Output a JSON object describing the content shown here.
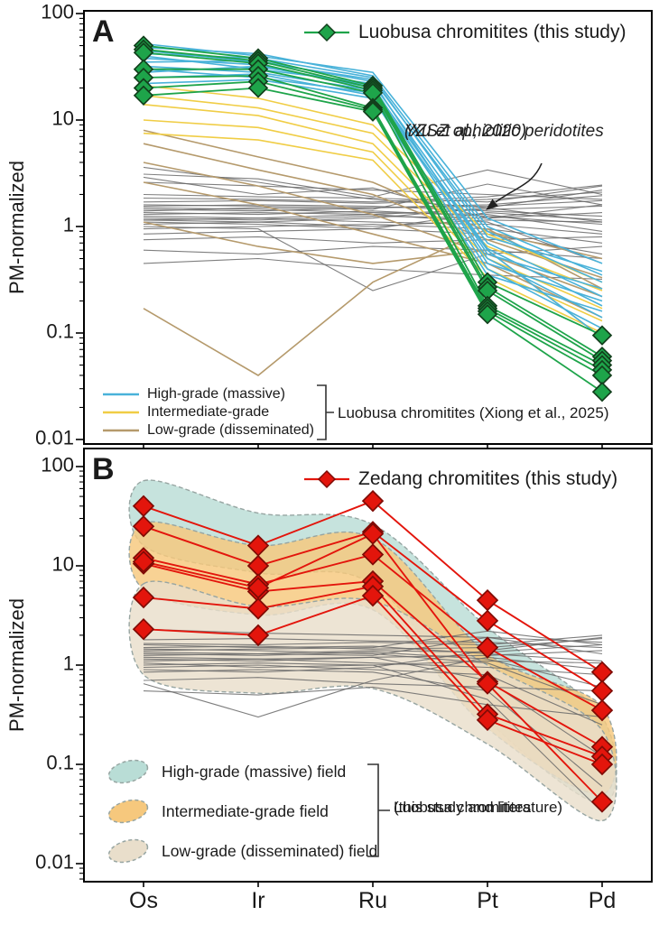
{
  "colors": {
    "green": "#1ea44a",
    "green_dark": "#123f1c",
    "red": "#e3150c",
    "red_dark": "#7f0b05",
    "blue_line": "#49b2d9",
    "yellow_line": "#f0cd45",
    "tan_line": "#b59a6c",
    "grey_line": "#686868",
    "field_teal": "#b9ddd6",
    "field_orange": "#f6c87d",
    "field_tan": "#e9decb",
    "field_edge": "#97a5a2",
    "text": "#1a1a1a",
    "axis": "#000000"
  },
  "chart_data": [
    {
      "type": "line",
      "panel_label": "A",
      "ylabel": "PM-normalized",
      "log_scale_y": true,
      "ylim": [
        0.01,
        100
      ],
      "yticks": [
        "100",
        "10",
        "1",
        "0.1",
        "0.01"
      ],
      "categories": [
        "Os",
        "Ir",
        "Ru",
        "Pt",
        "Pd"
      ],
      "legend": "Luobusa chromitites (this study)",
      "annotation": {
        "line1": "YZSZ ophiolitic peridotites",
        "line2": "(Xu et al., 2020)"
      },
      "groups_bracket_label": "Luobusa chromitites (Xiong et al., 2025)",
      "groups": [
        {
          "name": "YZSZ ophiolitic peridotites (Xu et al., 2020)",
          "color_key": "grey_line",
          "width": 1.1,
          "opacity": 0.85,
          "lines": [
            [
              1.05,
              1.1,
              1.0,
              1.15,
              1.1
            ],
            [
              1.2,
              1.15,
              1.25,
              1.2,
              1.35
            ],
            [
              1.3,
              1.35,
              1.3,
              1.45,
              1.55
            ],
            [
              1.45,
              1.4,
              1.5,
              1.55,
              1.75
            ],
            [
              1.6,
              1.55,
              1.5,
              1.6,
              1.95
            ],
            [
              1.7,
              1.75,
              1.65,
              1.8,
              2.1
            ],
            [
              1.85,
              1.8,
              1.7,
              1.9,
              2.45
            ],
            [
              1.15,
              1.2,
              1.1,
              1.05,
              0.85
            ],
            [
              1.35,
              1.3,
              1.4,
              1.25,
              1.05
            ],
            [
              1.5,
              1.45,
              1.35,
              1.3,
              0.9
            ],
            [
              0.95,
              1.0,
              1.05,
              0.95,
              0.7
            ],
            [
              1.1,
              1.05,
              0.95,
              0.85,
              0.55
            ],
            [
              1.25,
              1.2,
              1.3,
              1.1,
              0.45
            ],
            [
              2.6,
              2.4,
              2.2,
              2.0,
              1.8
            ],
            [
              3.1,
              2.8,
              1.9,
              3.4,
              2.0
            ],
            [
              0.75,
              0.8,
              0.7,
              0.75,
              0.8
            ],
            [
              0.6,
              0.55,
              0.65,
              0.6,
              0.5
            ],
            [
              0.45,
              0.5,
              0.4,
              0.35,
              0.32
            ],
            [
              1.0,
              0.95,
              0.25,
              0.55,
              0.65
            ],
            [
              1.4,
              1.5,
              1.45,
              2.5,
              1.6
            ],
            [
              2.0,
              1.9,
              1.85,
              1.7,
              2.4
            ],
            [
              0.85,
              0.9,
              0.95,
              1.35,
              1.15
            ],
            [
              1.55,
              1.6,
              1.55,
              1.4,
              1.25
            ],
            [
              1.15,
              1.1,
              1.2,
              1.5,
              2.2
            ],
            [
              3.6,
              2.6,
              1.8,
              1.5,
              1.1
            ],
            [
              2.9,
              2.0,
              2.3,
              1.2,
              1.6
            ]
          ]
        },
        {
          "name": "Low-grade (disseminated)",
          "color_key": "tan_line",
          "width": 1.6,
          "lines": [
            [
              8,
              4.5,
              2.6,
              0.9,
              0.5
            ],
            [
              6,
              3.4,
              2.0,
              0.75,
              0.33
            ],
            [
              4,
              2.4,
              1.3,
              0.55,
              0.22
            ],
            [
              2.6,
              1.6,
              0.85,
              0.45,
              0.14
            ],
            [
              1.1,
              0.65,
              0.45,
              0.6,
              0.09
            ],
            [
              0.17,
              0.04,
              0.3,
              0.95,
              0.26
            ]
          ]
        },
        {
          "name": "Intermediate-grade",
          "color_key": "yellow_line",
          "width": 1.6,
          "lines": [
            [
              21,
              16,
              9,
              0.85,
              0.3
            ],
            [
              17,
              13,
              7.5,
              0.65,
              0.25
            ],
            [
              14,
              11,
              6,
              0.5,
              0.17
            ],
            [
              10,
              8.5,
              5,
              0.4,
              0.13
            ],
            [
              7.5,
              6.5,
              4.2,
              0.33,
              0.1
            ]
          ]
        },
        {
          "name": "High-grade (massive)",
          "color_key": "blue_line",
          "width": 1.6,
          "lines": [
            [
              52,
              40,
              28,
              1.2,
              0.45
            ],
            [
              48,
              42,
              26,
              1.0,
              0.35
            ],
            [
              45,
              35,
              24,
              0.9,
              0.3
            ],
            [
              42,
              38,
              25,
              0.8,
              0.38
            ],
            [
              40,
              30,
              22,
              0.7,
              0.22
            ],
            [
              38,
              33,
              20,
              0.62,
              0.18
            ],
            [
              35,
              36,
              23,
              0.55,
              0.26
            ],
            [
              32,
              28,
              19,
              0.5,
              0.14
            ],
            [
              28,
              32,
              21,
              0.45,
              0.2
            ],
            [
              25,
              27,
              17,
              0.4,
              0.11
            ],
            [
              22,
              24,
              16,
              0.35,
              0.16
            ],
            [
              30,
              25,
              18,
              0.6,
              0.09
            ]
          ]
        },
        {
          "name": "Luobusa chromitites (this study)",
          "color_key": "green",
          "edge_key": "green_dark",
          "width": 1.8,
          "marker": "diamond",
          "marker_size": 10,
          "lines": [
            [
              50,
              38,
              21,
              0.3,
              0.095
            ],
            [
              46,
              36,
              20,
              0.27,
              0.06
            ],
            [
              43,
              34,
              19,
              0.25,
              0.055
            ],
            [
              30,
              30,
              18,
              0.18,
              0.05
            ],
            [
              25,
              26,
              13,
              0.17,
              0.045
            ],
            [
              20,
              23,
              12.5,
              0.16,
              0.04
            ],
            [
              17,
              20,
              12,
              0.15,
              0.028
            ]
          ]
        }
      ]
    },
    {
      "type": "line",
      "panel_label": "B",
      "ylabel": "PM-normalized",
      "log_scale_y": true,
      "ylim": [
        0.01,
        100
      ],
      "yticks": [
        "100",
        "10",
        "1",
        "0.1",
        "0.01"
      ],
      "categories": [
        "Os",
        "Ir",
        "Ru",
        "Pt",
        "Pd"
      ],
      "legend": "Zedang chromitites (this study)",
      "fields_bracket_line1": "Luobusa chromitites",
      "fields_bracket_line2": "(this study and literature)",
      "fields": [
        {
          "name": "High-grade (massive) field",
          "fill_key": "field_teal",
          "upper": [
            72,
            34,
            26,
            2.4,
            0.3
          ],
          "lower": [
            16,
            8.5,
            6.5,
            0.28,
            0.04
          ]
        },
        {
          "name": "Intermediate-grade field",
          "fill_key": "field_orange",
          "upper": [
            27,
            16,
            19,
            1.3,
            0.38
          ],
          "lower": [
            5.8,
            3.2,
            3.6,
            0.23,
            0.05
          ]
        },
        {
          "name": "Low-grade (disseminated) field",
          "fill_key": "field_tan",
          "upper": [
            6.6,
            3.9,
            4.4,
            1.0,
            0.22
          ],
          "lower": [
            0.8,
            0.52,
            0.58,
            0.16,
            0.027
          ]
        }
      ],
      "groups": [
        {
          "name": "YZSZ ophiolitic peridotites",
          "color_key": "grey_line",
          "width": 1.1,
          "opacity": 0.85,
          "lines": [
            [
              1.0,
              1.05,
              1.0,
              1.1,
              1.05
            ],
            [
              1.2,
              1.15,
              1.2,
              1.25,
              1.4
            ],
            [
              1.35,
              1.3,
              1.4,
              1.35,
              1.6
            ],
            [
              1.5,
              1.55,
              1.45,
              1.5,
              1.85
            ],
            [
              1.65,
              1.6,
              1.7,
              1.6,
              2.0
            ],
            [
              1.8,
              1.85,
              1.75,
              1.7,
              1.5
            ],
            [
              1.1,
              1.15,
              1.05,
              0.95,
              0.8
            ],
            [
              1.3,
              1.25,
              1.35,
              1.15,
              0.6
            ],
            [
              1.45,
              1.4,
              1.3,
              1.05,
              0.4
            ],
            [
              0.95,
              1.0,
              0.9,
              0.8,
              0.25
            ],
            [
              1.15,
              1.1,
              1.2,
              0.7,
              0.12
            ],
            [
              0.85,
              0.9,
              0.85,
              0.55,
              0.06
            ],
            [
              1.05,
              0.95,
              1.0,
              0.45,
              0.033
            ],
            [
              2.3,
              2.1,
              2.0,
              1.9,
              1.7
            ],
            [
              0.7,
              0.75,
              0.65,
              0.6,
              0.55
            ],
            [
              0.55,
              0.5,
              0.6,
              0.4,
              0.3
            ],
            [
              0.65,
              0.3,
              0.7,
              1.2,
              0.9
            ],
            [
              1.25,
              1.3,
              1.25,
              1.9,
              1.3
            ],
            [
              1.6,
              1.5,
              1.55,
              1.3,
              1.1
            ],
            [
              0.9,
              0.85,
              0.95,
              1.4,
              1.9
            ],
            [
              1.4,
              1.45,
              1.5,
              2.2,
              1.6
            ]
          ]
        },
        {
          "name": "Zedang chromitites (this study)",
          "color_key": "red",
          "edge_key": "red_dark",
          "width": 1.9,
          "marker": "diamond",
          "marker_size": 11,
          "lines": [
            [
              40,
              16,
              45,
              4.5,
              0.85
            ],
            [
              25,
              10,
              22,
              2.8,
              0.55
            ],
            [
              12,
              6.5,
              13,
              1.5,
              0.35
            ],
            [
              10.5,
              5.5,
              7,
              0.68,
              0.15
            ],
            [
              4.8,
              3.7,
              6.2,
              0.32,
              0.12
            ],
            [
              2.3,
              2.0,
              5.0,
              0.28,
              0.1
            ],
            [
              11,
              6.0,
              21,
              0.65,
              0.042
            ]
          ]
        }
      ]
    }
  ]
}
